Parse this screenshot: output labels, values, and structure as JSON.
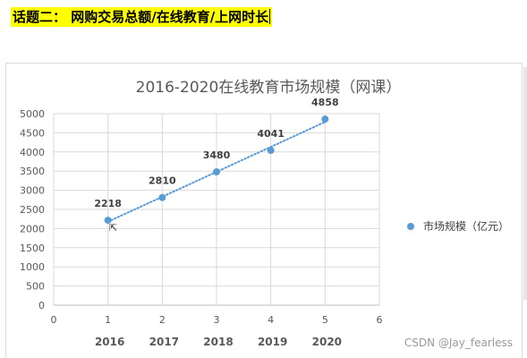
{
  "topic": {
    "text": "话题二： 网购交易总额/在线教育/上网时长"
  },
  "chart_data": {
    "type": "scatter",
    "title": "2016-2020在线教育市场规模（网课）",
    "x": [
      1,
      2,
      3,
      4,
      5
    ],
    "y": [
      2218,
      2810,
      3480,
      4041,
      4858
    ],
    "data_labels": [
      "2218",
      "2810",
      "3480",
      "4041",
      "4858"
    ],
    "xlim": [
      0,
      6
    ],
    "ylim": [
      0,
      5000
    ],
    "x_ticks": [
      "0",
      "1",
      "2",
      "3",
      "4",
      "5",
      "6"
    ],
    "y_ticks": [
      "0",
      "500",
      "1000",
      "1500",
      "2000",
      "2500",
      "3000",
      "3500",
      "4000",
      "4500",
      "5000"
    ],
    "year_labels": [
      "2016",
      "2017",
      "2018",
      "2019",
      "2020"
    ],
    "series": [
      {
        "name": "市场规模（亿元）",
        "color": "#5b9bd5"
      }
    ],
    "trendline": {
      "style": "dotted",
      "color": "#5b9bd5"
    },
    "grid": true,
    "legend_position": "right"
  },
  "watermark": "CSDN @Jay_fearless"
}
